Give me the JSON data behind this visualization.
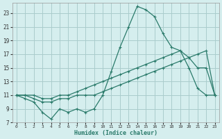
{
  "xlabel": "Humidex (Indice chaleur)",
  "background_color": "#d5eeee",
  "grid_color": "#aacccc",
  "line_color": "#2a7a6a",
  "xlim": [
    -0.5,
    23.5
  ],
  "ylim": [
    7,
    24.5
  ],
  "yticks": [
    7,
    9,
    11,
    13,
    15,
    17,
    19,
    21,
    23
  ],
  "xticks": [
    0,
    1,
    2,
    3,
    4,
    5,
    6,
    7,
    8,
    9,
    10,
    11,
    12,
    13,
    14,
    15,
    16,
    17,
    18,
    19,
    20,
    21,
    22,
    23
  ],
  "line_spike_x": [
    0,
    1,
    2,
    3,
    4,
    5,
    6,
    7,
    8,
    9,
    10,
    11,
    12,
    13,
    14,
    15,
    16,
    17,
    18,
    19,
    20,
    21,
    22,
    23
  ],
  "line_spike_y": [
    11,
    10.5,
    10,
    8.5,
    7.5,
    9,
    8.5,
    9,
    8.5,
    9,
    11,
    14.5,
    18,
    21,
    24,
    23.5,
    22.5,
    20,
    18,
    17.5,
    15,
    12,
    11,
    11
  ],
  "line_upper_x": [
    0,
    1,
    2,
    3,
    4,
    5,
    6,
    7,
    8,
    9,
    10,
    11,
    12,
    13,
    14,
    15,
    16,
    17,
    18,
    19,
    20,
    21,
    22,
    23
  ],
  "line_upper_y": [
    11,
    11,
    11,
    10.5,
    10.5,
    11,
    11,
    11.5,
    12,
    12.5,
    13,
    13.5,
    14,
    14.5,
    15,
    15.5,
    16,
    16.5,
    17,
    17.5,
    16.5,
    15,
    15,
    11
  ],
  "line_lower_x": [
    0,
    1,
    2,
    3,
    4,
    5,
    6,
    7,
    8,
    9,
    10,
    11,
    12,
    13,
    14,
    15,
    16,
    17,
    18,
    19,
    20,
    21,
    22,
    23
  ],
  "line_lower_y": [
    11,
    11,
    10.5,
    10,
    10,
    10.5,
    10.5,
    11,
    11,
    11,
    11.5,
    12,
    12.5,
    13,
    13.5,
    14,
    14.5,
    15,
    15.5,
    16,
    16.5,
    17,
    17.5,
    11
  ]
}
